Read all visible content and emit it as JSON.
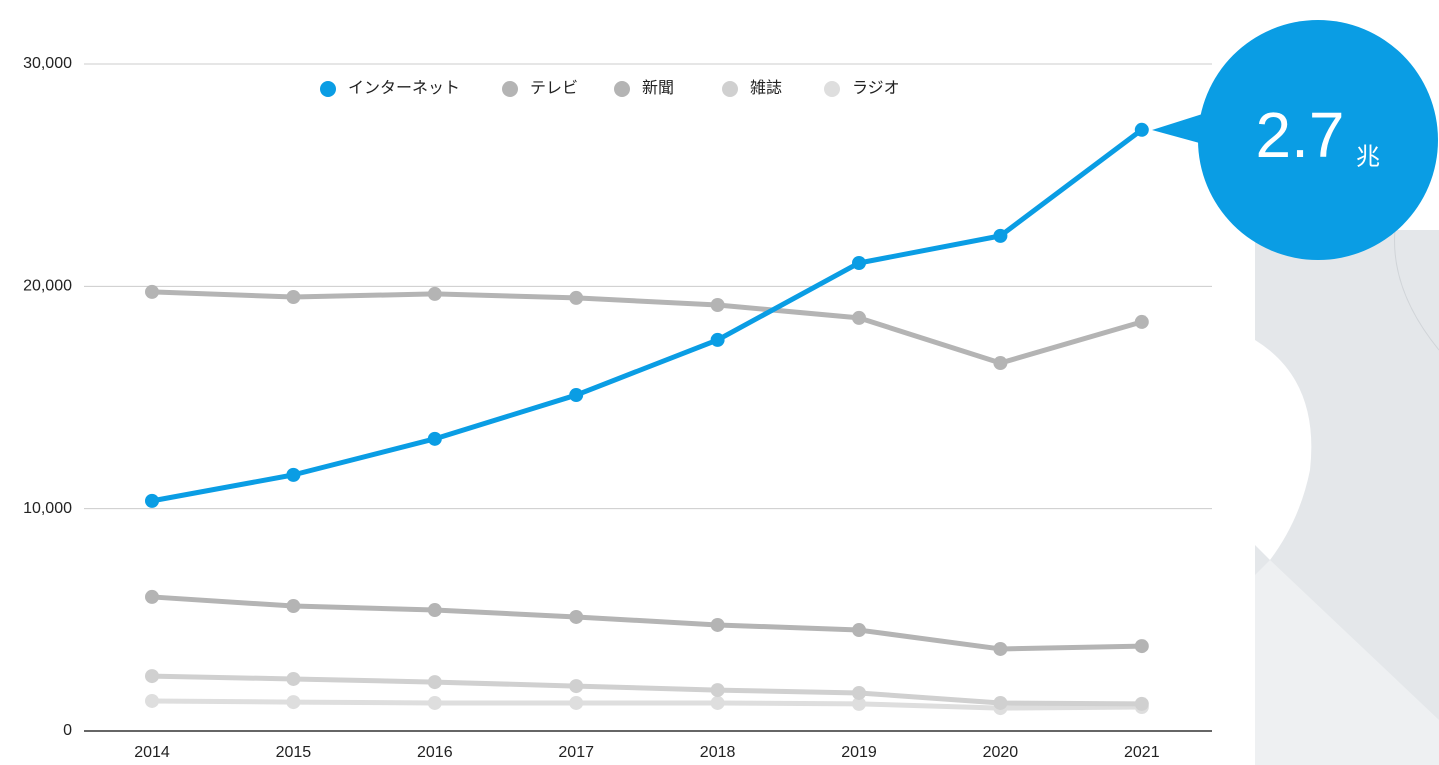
{
  "chart_data": {
    "type": "line",
    "categories": [
      "2014",
      "2015",
      "2016",
      "2017",
      "2018",
      "2019",
      "2020",
      "2021"
    ],
    "series": [
      {
        "name": "インターネット",
        "color": "#0a9de4",
        "values": [
          10350,
          11520,
          13140,
          15110,
          17590,
          21050,
          22270,
          27040
        ]
      },
      {
        "name": "テレビ",
        "color": "#b4b4b4",
        "values": [
          19750,
          19520,
          19660,
          19480,
          19160,
          18580,
          16550,
          18400
        ]
      },
      {
        "name": "新聞",
        "color": "#b4b4b4",
        "values": [
          6030,
          5620,
          5440,
          5130,
          4770,
          4540,
          3690,
          3820
        ]
      },
      {
        "name": "雑誌",
        "color": "#d0d0d0",
        "values": [
          2470,
          2340,
          2200,
          2020,
          1840,
          1710,
          1260,
          1220
        ]
      },
      {
        "name": "ラジオ",
        "color": "#dedede",
        "values": [
          1350,
          1300,
          1260,
          1260,
          1260,
          1220,
          1030,
          1080
        ]
      }
    ],
    "ylim": [
      0,
      30000
    ],
    "yticks": [
      0,
      {
        "value": 10000,
        "label": "10,000"
      },
      {
        "value": 20000,
        "label": "20,000"
      },
      {
        "value": 30000,
        "label": "30,000"
      }
    ],
    "grid": true,
    "legend": "top",
    "callout": {
      "value": "2.7",
      "unit": "兆",
      "color": "#0a9de4"
    }
  }
}
